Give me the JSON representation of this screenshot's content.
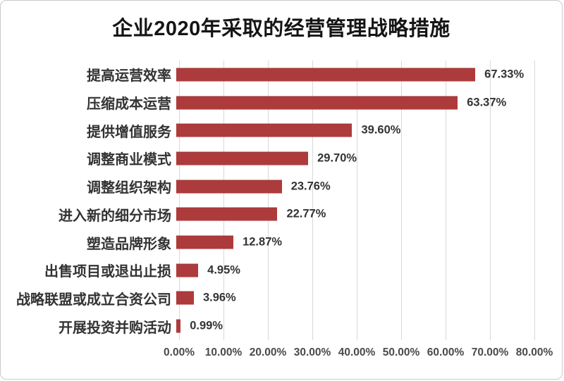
{
  "chart_data": {
    "type": "bar",
    "orientation": "horizontal",
    "title": "企业2020年采取的经营管理战略措施",
    "categories": [
      "提高运营效率",
      "压缩成本运营",
      "提供增值服务",
      "调整商业模式",
      "调整组织架构",
      "进入新的细分市场",
      "塑造品牌形象",
      "出售项目或退出止损",
      "战略联盟或成立合资公司",
      "开展投资并购活动"
    ],
    "values": [
      67.33,
      63.37,
      39.6,
      29.7,
      23.76,
      22.77,
      12.87,
      4.95,
      3.96,
      0.99
    ],
    "value_labels": [
      "67.33%",
      "63.37%",
      "39.60%",
      "29.70%",
      "23.76%",
      "22.77%",
      "12.87%",
      "4.95%",
      "3.96%",
      "0.99%"
    ],
    "x_ticks": [
      "0.00%",
      "10.00%",
      "20.00%",
      "30.00%",
      "40.00%",
      "50.00%",
      "60.00%",
      "70.00%",
      "80.00%"
    ],
    "x_tick_values": [
      0,
      10,
      20,
      30,
      40,
      50,
      60,
      70,
      80
    ],
    "xlim": [
      0,
      80
    ],
    "xlabel": "",
    "ylabel": "",
    "grid": "vertical",
    "legend": false,
    "bar_color": "#ae3b3b",
    "gridline_color": "#d9d9d9",
    "title_color": "#151515",
    "label_color": "#333333",
    "axis_label_color": "#4a4a4a"
  }
}
